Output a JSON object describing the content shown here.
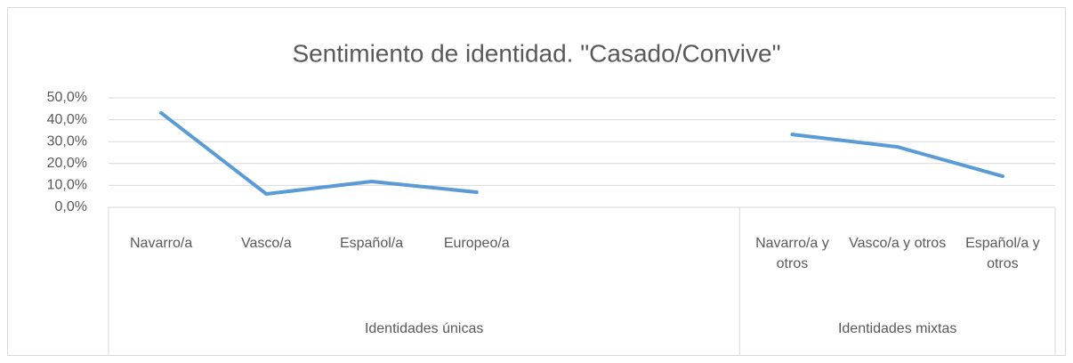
{
  "chart_data": {
    "type": "line",
    "title": "Sentimiento de identidad. \"Casado/Convive\"",
    "groups": [
      {
        "name": "Identidades únicas",
        "categories": [
          "Navarro/a",
          "Vasco/a",
          "Español/a",
          "Europeo/a",
          null,
          null
        ]
      },
      {
        "name": "Identidades mixtas",
        "categories": [
          "Navarro/a y otros",
          "Vasco/a y otros",
          "Español/a y otros"
        ]
      }
    ],
    "series": [
      {
        "name": "Casado/Convive",
        "color": "#5b9bd5",
        "values": [
          43.1,
          6.1,
          11.8,
          6.9,
          null,
          null,
          33.3,
          27.6,
          14.2
        ]
      }
    ],
    "ylim": [
      0,
      50
    ],
    "yticks": [
      {
        "value": 0,
        "label": "0,0%"
      },
      {
        "value": 10,
        "label": "10,0%"
      },
      {
        "value": 20,
        "label": "20,0%"
      },
      {
        "value": 30,
        "label": "30,0%"
      },
      {
        "value": 40,
        "label": "40,0%"
      },
      {
        "value": 50,
        "label": "50,0%"
      }
    ],
    "grid": true
  }
}
